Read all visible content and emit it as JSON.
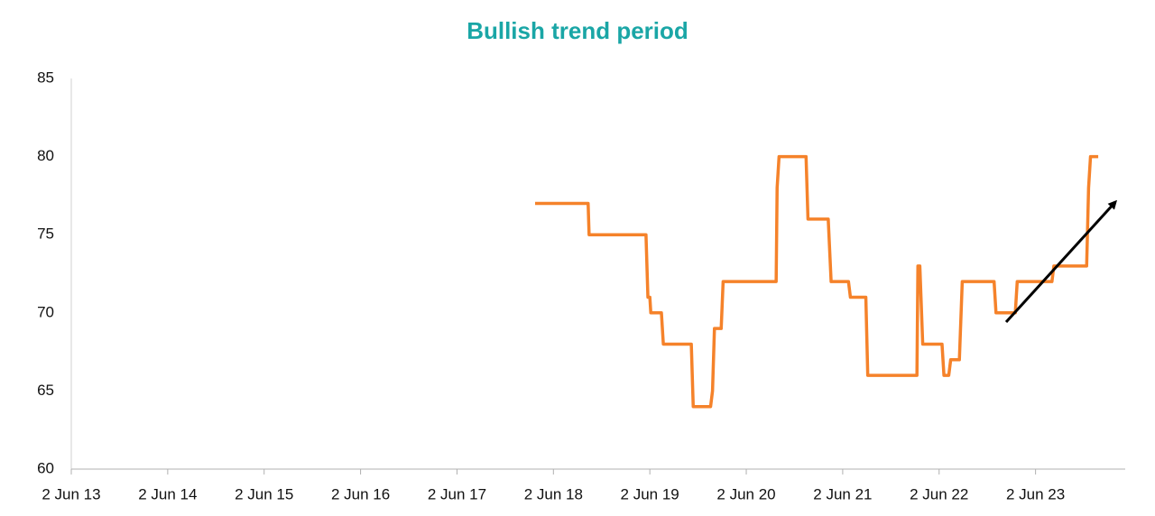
{
  "chart_data": {
    "type": "line",
    "title": "Bullish trend period",
    "x": [
      2018.23,
      2018.78,
      2018.79,
      2019.38,
      2019.4,
      2019.42,
      2019.43,
      2019.54,
      2019.56,
      2019.85,
      2019.87,
      2020.05,
      2020.07,
      2020.09,
      2020.16,
      2020.18,
      2020.73,
      2020.74,
      2020.76,
      2021.04,
      2021.06,
      2021.27,
      2021.3,
      2021.48,
      2021.5,
      2021.66,
      2021.68,
      2022.19,
      2022.2,
      2022.22,
      2022.25,
      2022.45,
      2022.47,
      2022.52,
      2022.54,
      2022.63,
      2022.66,
      2022.99,
      2023.01,
      2023.21,
      2023.23,
      2023.59,
      2023.61,
      2023.95,
      2023.97,
      2023.99,
      2024.07
    ],
    "series": [
      {
        "color": "#f5822a",
        "values": [
          77,
          77,
          75,
          75,
          71,
          71,
          70,
          70,
          68,
          68,
          64,
          64,
          65,
          69,
          69,
          72,
          72,
          78,
          80,
          80,
          76,
          76,
          72,
          72,
          71,
          71,
          66,
          66,
          73,
          73,
          68,
          68,
          66,
          66,
          67,
          67,
          72,
          72,
          70,
          70,
          72,
          72,
          73,
          73,
          78,
          80,
          80
        ]
      }
    ],
    "xlim": [
      2013.42,
      2024.35
    ],
    "xticks": [
      {
        "value": 2013.42,
        "label": "2 Jun 13"
      },
      {
        "value": 2014.42,
        "label": "2 Jun 14"
      },
      {
        "value": 2015.42,
        "label": "2 Jun 15"
      },
      {
        "value": 2016.42,
        "label": "2 Jun 16"
      },
      {
        "value": 2017.42,
        "label": "2 Jun 17"
      },
      {
        "value": 2018.42,
        "label": "2 Jun 18"
      },
      {
        "value": 2019.42,
        "label": "2 Jun 19"
      },
      {
        "value": 2020.42,
        "label": "2 Jun 20"
      },
      {
        "value": 2021.42,
        "label": "2 Jun 21"
      },
      {
        "value": 2022.42,
        "label": "2 Jun 22"
      },
      {
        "value": 2023.42,
        "label": "2 Jun 23"
      }
    ],
    "ylim": [
      60,
      85
    ],
    "yticks": [
      60,
      65,
      70,
      75,
      80,
      85
    ],
    "grid": false
  }
}
